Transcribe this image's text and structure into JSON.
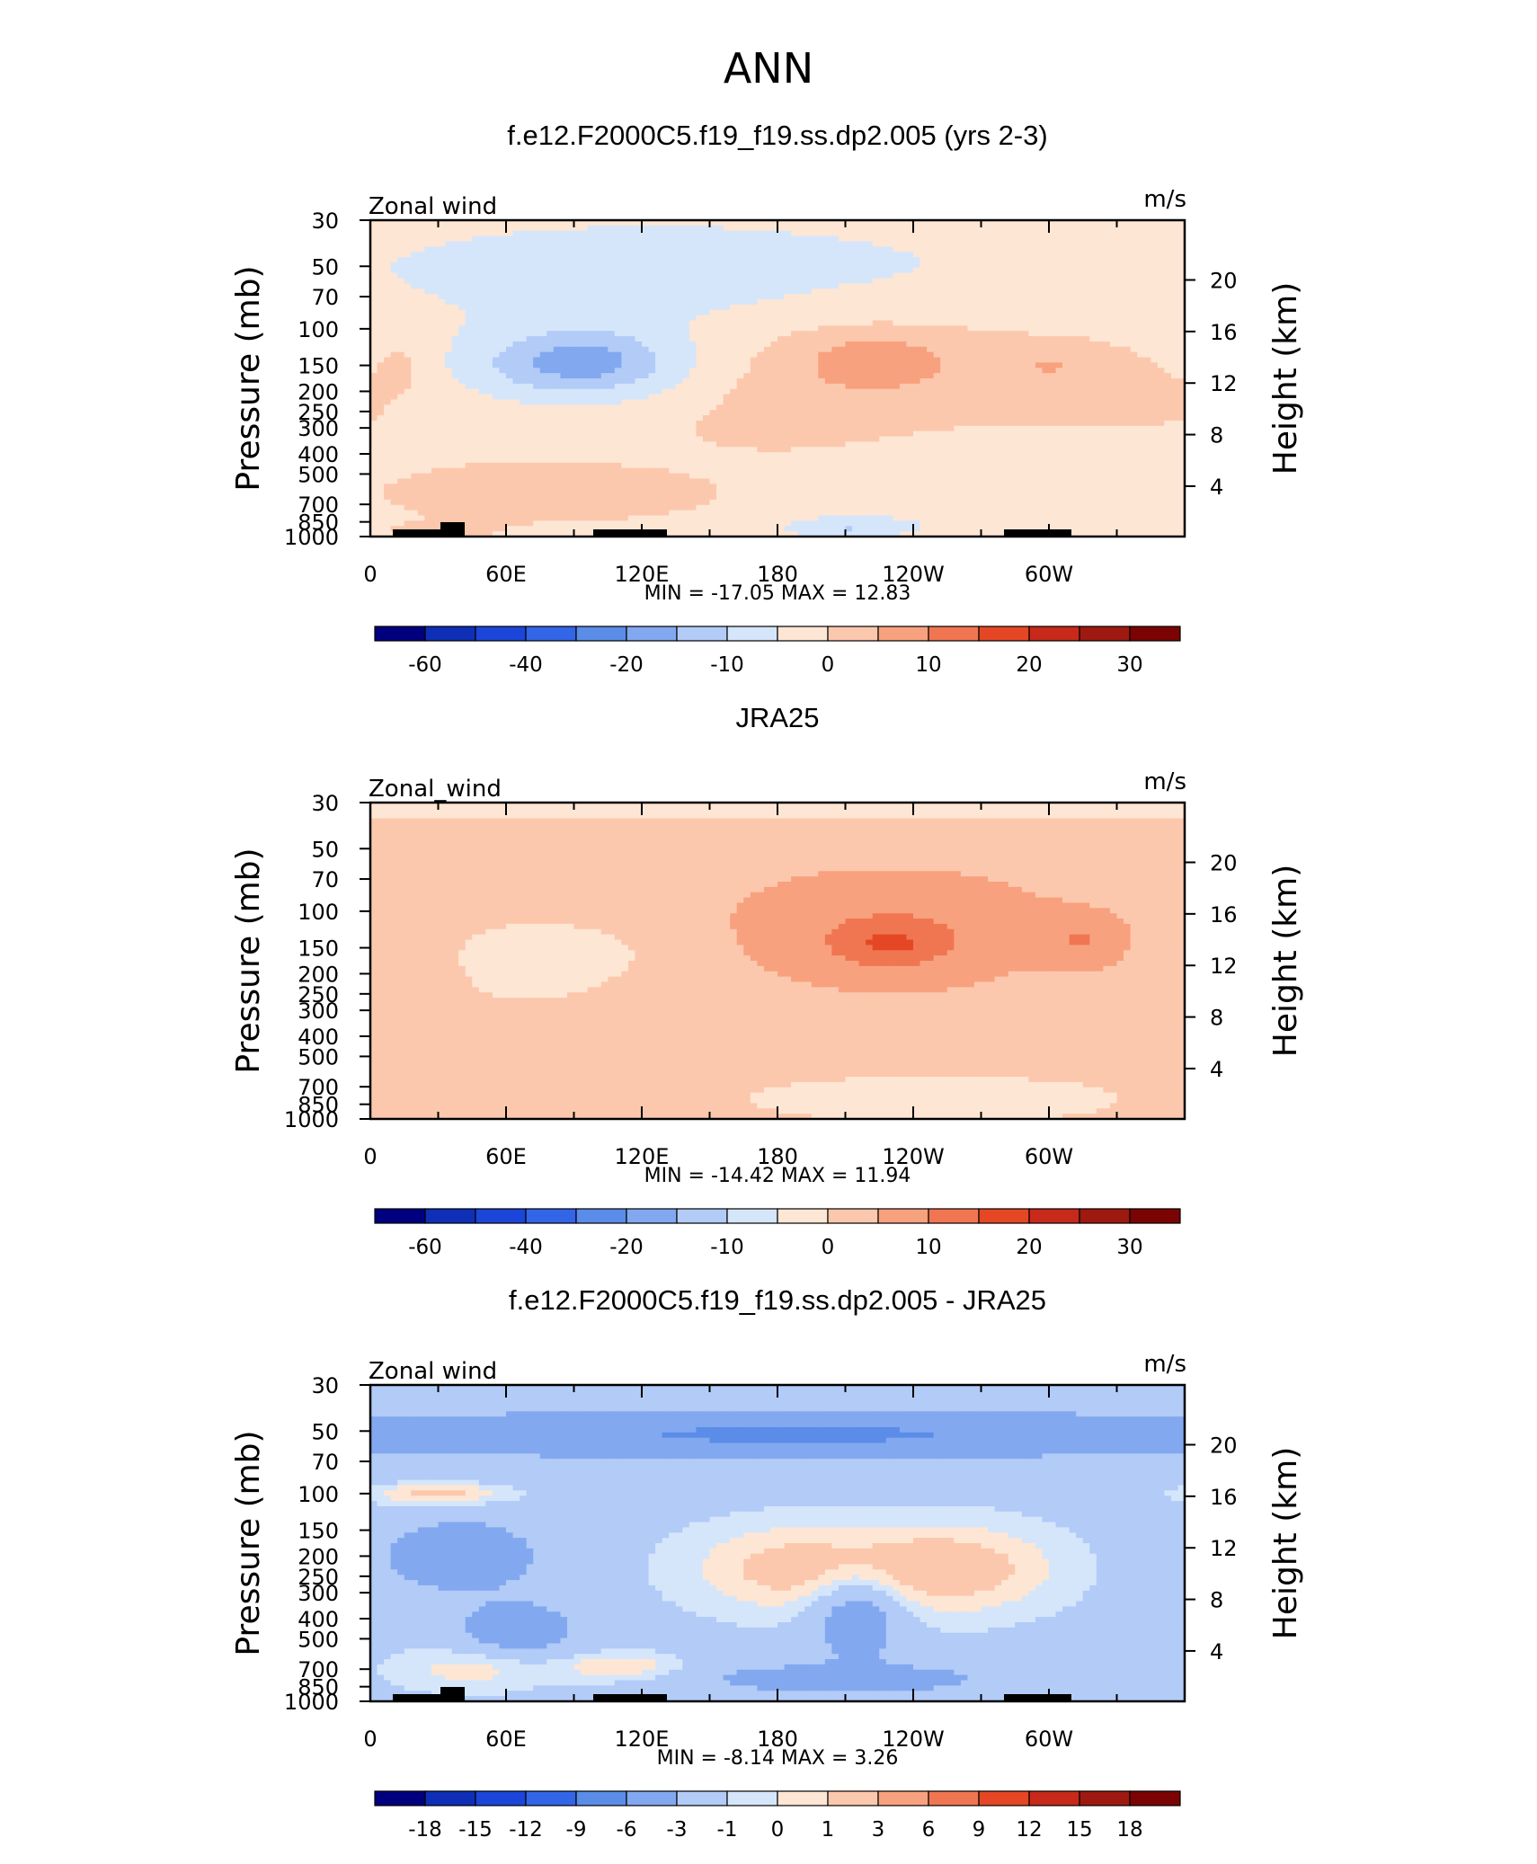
{
  "page": {
    "main_title": "ANN"
  },
  "chart_data": [
    {
      "type": "heatmap",
      "title": "f.e12.F2000C5.f19_f19.ss.dp2.005 (yrs 2-3)",
      "variable": "Zonal wind",
      "units": "m/s",
      "ylabel": "Pressure  (mb)",
      "ylabel_right": "Height  (km)",
      "xticks": [
        "0",
        "60E",
        "120E",
        "180",
        "120W",
        "60W"
      ],
      "yticks": [
        "30",
        "50",
        "70",
        "100",
        "150",
        "200",
        "250",
        "300",
        "400",
        "500",
        "700",
        "850",
        "1000"
      ],
      "yticks_right": [
        "20",
        "16",
        "12",
        "8",
        "4"
      ],
      "stats_text": "MIN =  -17.05   MAX =   12.83",
      "min": -17.05,
      "max": 12.83,
      "colorbar_labels": [
        "-60",
        "-40",
        "-20",
        "-10",
        "0",
        "10",
        "20",
        "30"
      ],
      "contour_levels": [
        -70,
        -60,
        -50,
        -40,
        -30,
        -20,
        -15,
        -10,
        -5,
        0,
        5,
        10,
        15,
        20,
        25,
        30
      ],
      "blobs": [
        {
          "lon": 140,
          "p": 60,
          "rlon": 150,
          "rlp": 0.6,
          "v": -5
        },
        {
          "lon": 250,
          "p": 500,
          "rlon": 60,
          "rlp": 0.5,
          "v": -3
        },
        {
          "lon": 70,
          "p": 240,
          "rlon": 110,
          "rlp": 1.1,
          "v": 3
        },
        {
          "lon": 255,
          "p": 165,
          "rlon": 125,
          "rlp": 0.9,
          "v": 5
        },
        {
          "lon": 205,
          "p": 190,
          "rlon": 60,
          "rlp": 1.1,
          "v": 3
        },
        {
          "lon": 90,
          "p": 155,
          "rlon": 60,
          "rlp": 0.45,
          "v": -12
        },
        {
          "lon": 95,
          "p": 140,
          "rlon": 30,
          "rlp": 0.28,
          "v": -6
        },
        {
          "lon": 225,
          "p": 140,
          "rlon": 28,
          "rlp": 0.25,
          "v": 6
        },
        {
          "lon": 300,
          "p": 150,
          "rlon": 16,
          "rlp": 0.15,
          "v": 4
        },
        {
          "lon": 78,
          "p": 650,
          "rlon": 75,
          "rlp": 0.3,
          "v": 6
        },
        {
          "lon": 30,
          "p": 950,
          "rlon": 30,
          "rlp": 0.12,
          "v": 4
        },
        {
          "lon": 210,
          "p": 900,
          "rlon": 25,
          "rlp": 0.1,
          "v": -7
        },
        {
          "lon": 15,
          "p": 150,
          "rlon": 12,
          "rlp": 0.3,
          "v": 3
        }
      ],
      "base_value": -3.5
    },
    {
      "type": "heatmap",
      "title": "JRA25",
      "variable": "Zonal_wind",
      "units": "m/s",
      "ylabel": "Pressure  (mb)",
      "ylabel_right": "Height  (km)",
      "xticks": [
        "0",
        "60E",
        "120E",
        "180",
        "120W",
        "60W"
      ],
      "yticks": [
        "30",
        "50",
        "70",
        "100",
        "150",
        "200",
        "250",
        "300",
        "400",
        "500",
        "700",
        "850",
        "1000"
      ],
      "yticks_right": [
        "20",
        "16",
        "12",
        "8",
        "4"
      ],
      "stats_text": "MIN =  -14.42   MAX =   11.94",
      "min": -14.42,
      "max": 11.94,
      "colorbar_labels": [
        "-60",
        "-40",
        "-20",
        "-10",
        "0",
        "10",
        "20",
        "30"
      ],
      "contour_levels": [
        -70,
        -60,
        -50,
        -40,
        -30,
        -20,
        -15,
        -10,
        -5,
        0,
        5,
        10,
        15,
        20,
        25,
        30
      ],
      "blobs": [
        {
          "lon": 230,
          "p": 110,
          "rlon": 130,
          "rlp": 1.0,
          "v": 4.5
        },
        {
          "lon": 75,
          "p": 200,
          "rlon": 60,
          "rlp": 0.8,
          "v": -2
        },
        {
          "lon": 90,
          "p": 155,
          "rlon": 45,
          "rlp": 0.35,
          "v": -3
        },
        {
          "lon": 250,
          "p": 800,
          "rlon": 80,
          "rlp": 0.25,
          "v": -4.5
        },
        {
          "lon": 230,
          "p": 140,
          "rlon": 45,
          "rlp": 0.45,
          "v": 6
        },
        {
          "lon": 230,
          "p": 145,
          "rlon": 18,
          "rlp": 0.18,
          "v": 5
        },
        {
          "lon": 315,
          "p": 140,
          "rlon": 18,
          "rlp": 0.28,
          "v": 6
        },
        {
          "lon": 35,
          "p": 720,
          "rlon": 35,
          "rlp": 0.3,
          "v": 3
        },
        {
          "lon": 180,
          "p": 32,
          "rlon": 400,
          "rlp": 0.1,
          "v": -6
        }
      ],
      "base_value": 1.5
    },
    {
      "type": "heatmap",
      "title": "f.e12.F2000C5.f19_f19.ss.dp2.005 - JRA25",
      "variable": "Zonal wind",
      "units": "m/s",
      "ylabel": "Pressure  (mb)",
      "ylabel_right": "Height  (km)",
      "xticks": [
        "0",
        "60E",
        "120E",
        "180",
        "120W",
        "60W"
      ],
      "yticks": [
        "30",
        "50",
        "70",
        "100",
        "150",
        "200",
        "250",
        "300",
        "400",
        "500",
        "700",
        "850",
        "1000"
      ],
      "yticks_right": [
        "20",
        "16",
        "12",
        "8",
        "4"
      ],
      "stats_text": "MIN =    -8.14   MAX =     3.26",
      "min": -8.14,
      "max": 3.26,
      "colorbar_labels": [
        "-18",
        "-15",
        "-12",
        "-9",
        "-6",
        "-3",
        "-1",
        "0",
        "1",
        "3",
        "6",
        "9",
        "12",
        "15",
        "18"
      ],
      "contour_levels": [
        -21,
        -18,
        -15,
        -12,
        -9,
        -6,
        -3,
        -1,
        0,
        1,
        3,
        6,
        9,
        12,
        15,
        18
      ],
      "blobs": [
        {
          "lon": 180,
          "p": 52,
          "rlon": 400,
          "rlp": 0.35,
          "v": -2.2
        },
        {
          "lon": 190,
          "p": 52,
          "rlon": 120,
          "rlp": 0.18,
          "v": -3
        },
        {
          "lon": 30,
          "p": 50,
          "rlon": 40,
          "rlp": 0.08,
          "v": -1.5
        },
        {
          "lon": 190,
          "p": 230,
          "rlon": 50,
          "rlp": 0.5,
          "v": 3.2
        },
        {
          "lon": 260,
          "p": 230,
          "rlon": 45,
          "rlp": 0.5,
          "v": 3.2
        },
        {
          "lon": 30,
          "p": 100,
          "rlon": 30,
          "rlp": 0.12,
          "v": 3
        },
        {
          "lon": 40,
          "p": 200,
          "rlon": 30,
          "rlp": 0.35,
          "v": -4.5
        },
        {
          "lon": 65,
          "p": 450,
          "rlon": 25,
          "rlp": 0.3,
          "v": -3.5
        },
        {
          "lon": 110,
          "p": 680,
          "rlon": 25,
          "rlp": 0.15,
          "v": 2.5
        },
        {
          "lon": 45,
          "p": 700,
          "rlon": 35,
          "rlp": 0.25,
          "v": 2
        },
        {
          "lon": 215,
          "p": 380,
          "rlon": 20,
          "rlp": 0.5,
          "v": -4
        },
        {
          "lon": 210,
          "p": 780,
          "rlon": 55,
          "rlp": 0.15,
          "v": -4
        }
      ],
      "base_value": -1.5
    }
  ],
  "colors": {
    "scale": [
      "#00007f",
      "#0e2fb6",
      "#1c45d9",
      "#3366e6",
      "#5b8ce8",
      "#82a8ef",
      "#b2cbf7",
      "#d5e6fb",
      "#fde6d4",
      "#fcc8ad",
      "#f8a17e",
      "#f07652",
      "#e54724",
      "#c7291a",
      "#9e1910",
      "#7a0403"
    ]
  }
}
